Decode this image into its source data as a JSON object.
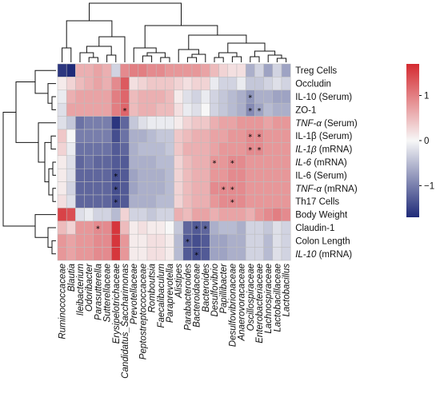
{
  "chart_data": {
    "type": "heatmap",
    "title": "",
    "xlabel": "",
    "ylabel": "",
    "rows": [
      {
        "label": "Treg Cells",
        "italic": false
      },
      {
        "label": "Occludin",
        "italic": false
      },
      {
        "label": "IL-10 (Serum)",
        "italic": false
      },
      {
        "label": "ZO-1",
        "italic": false
      },
      {
        "label": "TNF-α (Serum)",
        "italic": false,
        "italic_part": "TNF-α"
      },
      {
        "label": "IL-1β (Serum)",
        "italic": false
      },
      {
        "label": "IL-1β (mRNA)",
        "italic": false,
        "italic_part": "IL-1β"
      },
      {
        "label": "IL-6 (mRNA)",
        "italic": false,
        "italic_part": "IL-6"
      },
      {
        "label": "IL-6 (Serum)",
        "italic": false
      },
      {
        "label": "TNF-α (mRNA)",
        "italic": false,
        "italic_part": "TNF-α"
      },
      {
        "label": "Th17 Cells",
        "italic": false
      },
      {
        "label": "Body Weight",
        "italic": false
      },
      {
        "label": "Claudin-1",
        "italic": false
      },
      {
        "label": "Colon Length",
        "italic": false
      },
      {
        "label": "IL-10 (mRNA)",
        "italic": false,
        "italic_part": "IL-10"
      }
    ],
    "columns": [
      "Ruminococcaceae",
      "Blautia",
      "Ileibacterium",
      "Odoribacter",
      "Parasutterella",
      "Sutterellaceae",
      "Erysipelotrichaceae",
      "Candidatus_Saccharimonas",
      "Prevotellaceae",
      "Peptostreptococcaceae",
      "Romboutsia",
      "Faecalibaculum",
      "Paraprevotella",
      "Alistipes",
      "Parabacteroides",
      "Bacteroidaceae",
      "Bacteroides",
      "Desulfovibrio",
      "Papillibacter",
      "Desulfovibrionaceae",
      "Anaerovoracaceae",
      "Oscillospiraceae",
      "Enterobacteriaceae",
      "Lachnospiraceae",
      "Lactobacillaceae",
      "Lactobacillus"
    ],
    "values": [
      [
        -1.6,
        -1.7,
        0.6,
        0.6,
        0.7,
        0.6,
        -0.3,
        0.9,
        1.0,
        1.0,
        0.9,
        0.9,
        0.8,
        0.8,
        0.8,
        0.8,
        0.7,
        0.5,
        0.3,
        0.2,
        0.2,
        -0.6,
        -0.3,
        -0.7,
        -0.3,
        -0.7
      ],
      [
        0.1,
        0.3,
        0.5,
        0.6,
        0.7,
        0.6,
        0.9,
        1.3,
        0.2,
        0.3,
        0.4,
        0.4,
        0.4,
        0.3,
        0.2,
        0.3,
        0.3,
        -0.1,
        -0.3,
        -0.3,
        -0.1,
        -0.4,
        -0.4,
        -0.3,
        -0.2,
        -0.3
      ],
      [
        -0.1,
        0.6,
        0.7,
        0.7,
        0.7,
        0.7,
        1.0,
        1.2,
        0.5,
        0.6,
        0.6,
        0.6,
        0.5,
        0.1,
        -0.2,
        -0.3,
        -0.1,
        -0.3,
        -0.4,
        -0.5,
        -0.6,
        -0.8,
        -0.6,
        -0.6,
        -0.7,
        -0.7
      ],
      [
        -0.2,
        0.7,
        0.7,
        0.7,
        0.7,
        0.7,
        1.0,
        1.2,
        0.5,
        0.6,
        0.6,
        0.5,
        0.5,
        0.2,
        -0.1,
        -0.2,
        0.0,
        -0.3,
        -0.4,
        -0.5,
        -0.6,
        -0.9,
        -0.7,
        -0.5,
        -0.6,
        -0.6
      ],
      [
        -0.2,
        -0.4,
        -1.1,
        -1.0,
        -1.0,
        -1.0,
        -1.6,
        -1.2,
        -0.4,
        -0.2,
        -0.1,
        -0.1,
        -0.1,
        0.1,
        0.3,
        0.4,
        0.4,
        0.6,
        0.7,
        0.7,
        0.8,
        0.8,
        0.8,
        0.7,
        0.8,
        0.8
      ],
      [
        0.4,
        0.0,
        -1.0,
        -1.0,
        -1.0,
        -1.0,
        -1.4,
        -1.1,
        -0.6,
        -0.6,
        -0.5,
        -0.4,
        -0.4,
        0.4,
        0.5,
        0.6,
        0.6,
        0.7,
        0.7,
        0.8,
        0.8,
        0.9,
        0.9,
        0.8,
        0.8,
        0.8
      ],
      [
        0.3,
        -0.1,
        -1.1,
        -1.1,
        -1.1,
        -1.1,
        -1.3,
        -1.2,
        -0.6,
        -0.5,
        -0.5,
        -0.5,
        -0.4,
        0.4,
        0.6,
        0.6,
        0.6,
        0.7,
        0.8,
        0.8,
        0.8,
        0.9,
        0.9,
        0.8,
        0.8,
        0.8
      ],
      [
        0.1,
        -0.2,
        -1.2,
        -1.1,
        -1.2,
        -1.2,
        -1.3,
        -1.3,
        -0.6,
        -0.6,
        -0.6,
        -0.5,
        -0.5,
        0.3,
        0.5,
        0.6,
        0.6,
        0.8,
        0.8,
        0.9,
        0.9,
        0.8,
        0.8,
        0.8,
        0.8,
        0.8
      ],
      [
        0.1,
        -0.2,
        -1.2,
        -1.2,
        -1.2,
        -1.2,
        -1.4,
        -1.3,
        -0.7,
        -0.6,
        -0.6,
        -0.6,
        -0.5,
        0.3,
        0.5,
        0.6,
        0.6,
        0.8,
        0.8,
        0.9,
        0.9,
        0.8,
        0.8,
        0.8,
        0.8,
        0.8
      ],
      [
        0.1,
        -0.3,
        -1.2,
        -1.2,
        -1.2,
        -1.2,
        -1.4,
        -1.3,
        -0.7,
        -0.6,
        -0.6,
        -0.6,
        -0.5,
        0.3,
        0.5,
        0.6,
        0.6,
        0.9,
        0.9,
        0.9,
        0.9,
        0.8,
        0.8,
        0.8,
        0.8,
        0.8
      ],
      [
        0.2,
        -0.2,
        -1.2,
        -1.2,
        -1.2,
        -1.2,
        -1.4,
        -1.3,
        -0.6,
        -0.6,
        -0.6,
        -0.5,
        -0.5,
        0.3,
        0.5,
        0.6,
        0.6,
        0.8,
        0.9,
        0.9,
        0.9,
        0.8,
        0.8,
        0.8,
        0.8,
        0.8
      ],
      [
        1.5,
        1.4,
        -0.2,
        -0.1,
        -0.3,
        -0.3,
        -0.5,
        0.3,
        -0.3,
        -0.3,
        -0.4,
        -0.3,
        -0.3,
        0.6,
        0.5,
        0.7,
        0.7,
        0.6,
        0.7,
        0.7,
        0.7,
        0.6,
        0.8,
        0.9,
        1.0,
        0.9
      ],
      [
        0.5,
        0.3,
        0.8,
        0.8,
        0.9,
        0.9,
        1.6,
        0.5,
        0.1,
        0.2,
        0.1,
        0.1,
        0.0,
        -0.4,
        -1.2,
        -1.3,
        -1.2,
        -0.6,
        -0.5,
        -0.5,
        -0.6,
        -0.3,
        -0.3,
        -0.4,
        -0.2,
        -0.3
      ],
      [
        0.8,
        0.7,
        0.8,
        0.8,
        0.9,
        0.9,
        1.6,
        0.8,
        0.1,
        0.1,
        0.2,
        0.2,
        0.1,
        -0.5,
        -1.3,
        -1.4,
        -1.3,
        -0.7,
        -0.7,
        -0.6,
        -0.6,
        -0.3,
        -0.3,
        -0.5,
        -0.2,
        -0.3
      ],
      [
        0.8,
        0.7,
        0.8,
        0.8,
        0.9,
        0.9,
        1.6,
        0.8,
        0.1,
        0.1,
        0.2,
        0.2,
        0.1,
        -0.5,
        -1.3,
        -1.4,
        -1.3,
        -0.7,
        -0.7,
        -0.6,
        -0.6,
        -0.3,
        -0.3,
        -0.5,
        -0.2,
        -0.3
      ]
    ],
    "significance_marks": [
      {
        "row": 2,
        "col": 21,
        "symbol": "*"
      },
      {
        "row": 3,
        "col": 7,
        "symbol": "*"
      },
      {
        "row": 3,
        "col": 21,
        "symbol": "*"
      },
      {
        "row": 3,
        "col": 22,
        "symbol": "*"
      },
      {
        "row": 5,
        "col": 21,
        "symbol": "*"
      },
      {
        "row": 5,
        "col": 22,
        "symbol": "*"
      },
      {
        "row": 6,
        "col": 21,
        "symbol": "*"
      },
      {
        "row": 6,
        "col": 22,
        "symbol": "*"
      },
      {
        "row": 7,
        "col": 17,
        "symbol": "*"
      },
      {
        "row": 7,
        "col": 19,
        "symbol": "*"
      },
      {
        "row": 8,
        "col": 6,
        "symbol": "*"
      },
      {
        "row": 9,
        "col": 6,
        "symbol": "*"
      },
      {
        "row": 9,
        "col": 18,
        "symbol": "*"
      },
      {
        "row": 9,
        "col": 19,
        "symbol": "*"
      },
      {
        "row": 10,
        "col": 6,
        "symbol": "*"
      },
      {
        "row": 10,
        "col": 19,
        "symbol": "*"
      },
      {
        "row": 12,
        "col": 4,
        "symbol": "*"
      },
      {
        "row": 12,
        "col": 15,
        "symbol": "*"
      },
      {
        "row": 12,
        "col": 16,
        "symbol": "*"
      },
      {
        "row": 13,
        "col": 14,
        "symbol": "*"
      },
      {
        "row": 14,
        "col": 15,
        "symbol": "*"
      }
    ],
    "colorbar": {
      "range": [
        -1.7,
        1.7
      ],
      "ticks": [
        1,
        0,
        -1
      ],
      "tick_labels": [
        "1",
        "0",
        "−1"
      ],
      "colors": {
        "low": "#1f2a78",
        "mid": "#f7f7f7",
        "high": "#d42a30"
      }
    },
    "dendrograms": {
      "rows": true,
      "columns": true
    }
  }
}
